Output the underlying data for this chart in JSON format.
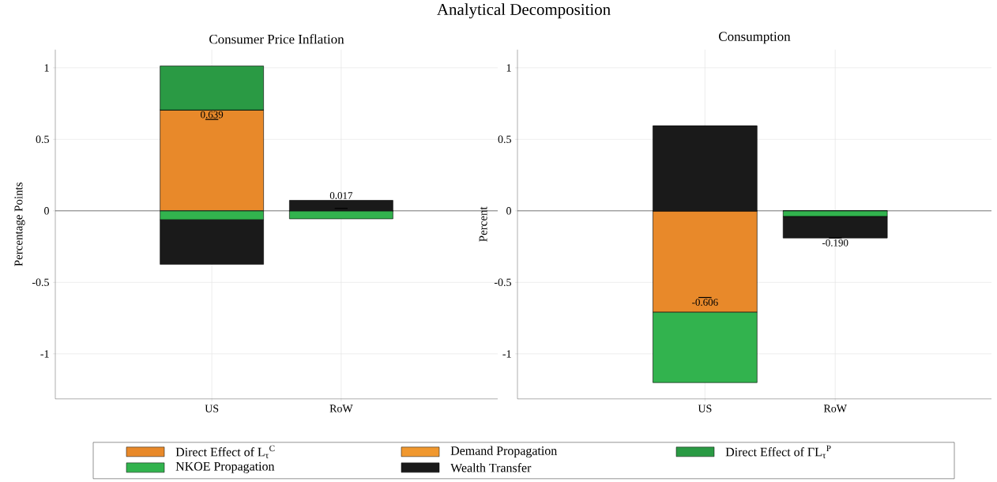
{
  "chart_data": [
    {
      "type": "bar",
      "title": "Consumer Price Inflation",
      "ylabel": "Percentage Points",
      "categories": [
        "US",
        "RoW"
      ],
      "stacked": true,
      "ylim": [
        -1.315,
        1.127
      ],
      "yticks": [
        -1,
        -0.5,
        0,
        0.5,
        1
      ],
      "grid": true,
      "legend": "bottom",
      "series": [
        {
          "name": "Direct Effect of L$_{τ}$$^{C}$",
          "color": "#e8892a",
          "values": [
            0.705,
            0
          ]
        },
        {
          "name": "Demand Propagation",
          "color": "#f0982f",
          "values": [
            0,
            0
          ]
        },
        {
          "name": "Direct Effect of ΓL$_{τ}$$^{P}$",
          "color": "#2a9a44",
          "values": [
            0.308,
            0
          ]
        },
        {
          "name": "NKOE Propagation",
          "color": "#32b34e",
          "values": [
            -0.063,
            -0.056
          ]
        },
        {
          "name": "Wealth Transfer",
          "color": "#1a1a1a",
          "values": [
            -0.311,
            0.073
          ]
        }
      ],
      "ref_lines": [
        {
          "axis": "y",
          "value": 0
        }
      ],
      "totals": [
        "0.639",
        "0.017"
      ],
      "annotations": [
        "Analytical Decomposition"
      ]
    },
    {
      "type": "bar",
      "title": "Consumption",
      "ylabel": "Percent",
      "categories": [
        "US",
        "RoW"
      ],
      "stacked": true,
      "ylim": [
        -1.315,
        1.127
      ],
      "yticks": [
        -1,
        -0.5,
        0,
        0.5,
        1
      ],
      "grid": true,
      "series": [
        {
          "color": "#e8892a",
          "values": [
            -0.709,
            0
          ]
        },
        {
          "color": "#f0982f",
          "values": [
            0,
            0
          ]
        },
        {
          "color": "#2a9a44",
          "values": [
            0,
            0
          ]
        },
        {
          "color": "#32b34e",
          "values": [
            -0.492,
            -0.04
          ]
        },
        {
          "color": "#1a1a1a",
          "values": [
            0.595,
            -0.15
          ]
        }
      ],
      "ref_lines": [
        {
          "axis": "y",
          "value": 0
        }
      ],
      "totals": [
        "-0.606",
        "-0.190"
      ]
    }
  ]
}
